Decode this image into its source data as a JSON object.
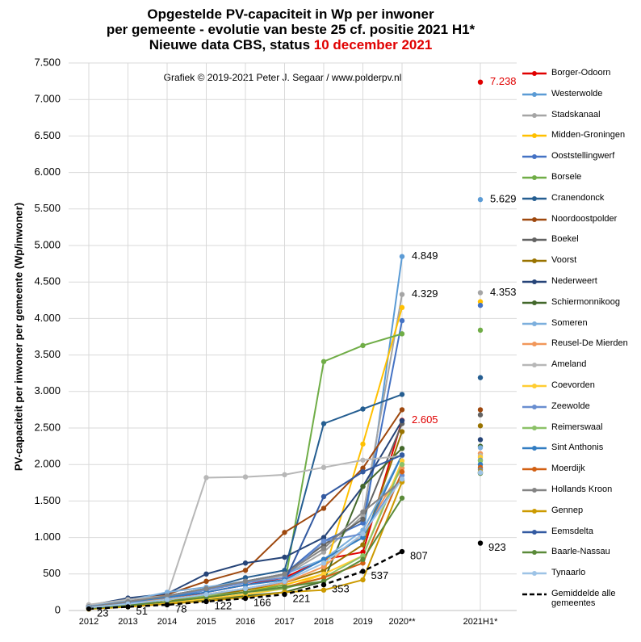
{
  "chart_data": {
    "type": "line",
    "title_lines": [
      "Opgestelde PV-capaciteit in Wp per inwoner",
      "per gemeente - evolutie van beste 25 cf. positie 2021 H1*",
      "Nieuwe data CBS, status"
    ],
    "title_highlight": "10 december 2021",
    "credit": "Grafiek © 2019-2021 Peter J. Segaar / www.polderpv.nl",
    "ylabel": "PV-capaciteit per inwoner per gemeente (Wp/inwoner)",
    "categories": [
      "2012",
      "2013",
      "2014",
      "2015",
      "2016",
      "2017",
      "2018",
      "2019",
      "2020**",
      null,
      "2021H1*"
    ],
    "ylim": [
      0,
      7500
    ],
    "yticks": [
      0,
      500,
      {
        "value": 1000,
        "label": "1.000"
      },
      {
        "value": 1500,
        "label": "1.500"
      },
      {
        "value": 2000,
        "label": "2.000"
      },
      {
        "value": 2500,
        "label": "2.500"
      },
      {
        "value": 3000,
        "label": "3.000"
      },
      {
        "value": 3500,
        "label": "3.500"
      },
      {
        "value": 4000,
        "label": "4.000"
      },
      {
        "value": 4500,
        "label": "4.500"
      },
      {
        "value": 5000,
        "label": "5.000"
      },
      {
        "value": 5500,
        "label": "5.500"
      },
      {
        "value": 6000,
        "label": "6.000"
      },
      {
        "value": 6500,
        "label": "6.500"
      },
      {
        "value": 7000,
        "label": "7.000"
      },
      {
        "value": 7500,
        "label": "7.500"
      }
    ],
    "grid": true,
    "series": [
      {
        "name": "Borger-Odoorn",
        "color": "#e00000",
        "label_color": "#e00000",
        "values": [
          40,
          100,
          150,
          250,
          350,
          450,
          700,
          800,
          2605,
          null,
          7238
        ],
        "value_labels": [
          null,
          null,
          null,
          null,
          null,
          null,
          null,
          null,
          "2.605",
          null,
          "7.238"
        ]
      },
      {
        "name": "Westerwolde",
        "color": "#5b9bd5",
        "label_color": "#000000",
        "values": [
          50,
          120,
          200,
          300,
          400,
          500,
          700,
          1000,
          4849,
          null,
          5629
        ],
        "value_labels": [
          null,
          null,
          null,
          null,
          null,
          null,
          null,
          null,
          "4.849",
          null,
          "5.629"
        ]
      },
      {
        "name": "Stadskanaal",
        "color": "#a5a5a5",
        "label_color": "#000000",
        "values": [
          40,
          100,
          180,
          280,
          380,
          480,
          800,
          1300,
          4329,
          null,
          4353
        ],
        "value_labels": [
          null,
          null,
          null,
          null,
          null,
          null,
          null,
          null,
          "4.329",
          null,
          "4.353"
        ]
      },
      {
        "name": "Midden-Groningen",
        "color": "#ffc000",
        "values": [
          30,
          80,
          120,
          200,
          280,
          350,
          500,
          2280,
          4150,
          null,
          4230
        ]
      },
      {
        "name": "Ooststellingwerf",
        "color": "#4472c4",
        "values": [
          40,
          100,
          180,
          280,
          400,
          500,
          950,
          1200,
          3970,
          null,
          4180
        ]
      },
      {
        "name": "Borsele",
        "color": "#70ad47",
        "values": [
          50,
          100,
          150,
          200,
          250,
          350,
          3410,
          3630,
          3790,
          null,
          3840
        ]
      },
      {
        "name": "Cranendonck",
        "color": "#255e91",
        "values": [
          60,
          120,
          200,
          300,
          450,
          550,
          2560,
          2760,
          2960,
          null,
          3190
        ]
      },
      {
        "name": "Noordoostpolder",
        "color": "#9e480e",
        "values": [
          60,
          130,
          220,
          400,
          550,
          1070,
          1400,
          1950,
          2750,
          null,
          2750
        ]
      },
      {
        "name": "Boekel",
        "color": "#636363",
        "values": [
          50,
          110,
          200,
          300,
          400,
          500,
          900,
          1250,
          2560,
          null,
          2680
        ]
      },
      {
        "name": "Voorst",
        "color": "#997300",
        "values": [
          30,
          70,
          120,
          200,
          280,
          380,
          550,
          900,
          2450,
          null,
          2530
        ]
      },
      {
        "name": "Nederweert",
        "color": "#264478",
        "values": [
          70,
          170,
          230,
          500,
          650,
          730,
          1000,
          1700,
          2600,
          null,
          2340
        ]
      },
      {
        "name": "Schiermonnikoog",
        "color": "#43682b",
        "values": [
          30,
          60,
          100,
          150,
          200,
          250,
          400,
          1700,
          2220,
          null,
          2250
        ]
      },
      {
        "name": "Someren",
        "color": "#7cafdd",
        "values": [
          60,
          140,
          250,
          320,
          400,
          500,
          700,
          1100,
          2130,
          null,
          2230
        ]
      },
      {
        "name": "Reusel-De Mierden",
        "color": "#f1975a",
        "values": [
          40,
          100,
          160,
          220,
          300,
          380,
          600,
          1050,
          1950,
          null,
          2150
        ]
      },
      {
        "name": "Ameland",
        "color": "#b7b7b7",
        "values": [
          80,
          150,
          200,
          1820,
          1830,
          1860,
          1960,
          2060,
          2120,
          null,
          2120
        ]
      },
      {
        "name": "Coevorden",
        "color": "#ffcd33",
        "values": [
          30,
          70,
          110,
          160,
          220,
          300,
          500,
          750,
          2050,
          null,
          2100
        ]
      },
      {
        "name": "Zeewolde",
        "color": "#698ed0",
        "values": [
          40,
          100,
          200,
          280,
          380,
          450,
          950,
          1050,
          1850,
          null,
          2060
        ]
      },
      {
        "name": "Reimerswaal",
        "color": "#8cc168",
        "values": [
          30,
          80,
          150,
          200,
          250,
          300,
          450,
          750,
          2000,
          null,
          2050
        ]
      },
      {
        "name": "Sint Anthonis",
        "color": "#327dc2",
        "values": [
          50,
          120,
          180,
          250,
          350,
          420,
          700,
          1000,
          2130,
          null,
          2000
        ]
      },
      {
        "name": "Moerdijk",
        "color": "#d26012",
        "values": [
          30,
          70,
          120,
          180,
          250,
          320,
          450,
          650,
          1900,
          null,
          1960
        ]
      },
      {
        "name": "Hollands Kroon",
        "color": "#848484",
        "values": [
          50,
          120,
          200,
          300,
          400,
          500,
          850,
          1350,
          1780,
          null,
          1930
        ]
      },
      {
        "name": "Gennep",
        "color": "#cc9a00",
        "values": [
          20,
          50,
          90,
          130,
          180,
          250,
          280,
          420,
          1760,
          null,
          1900
        ]
      },
      {
        "name": "Eemsdelta",
        "color": "#335aa1",
        "values": [
          40,
          90,
          150,
          220,
          300,
          400,
          1560,
          1900,
          2130,
          null,
          1880
        ]
      },
      {
        "name": "Baarle-Nassau",
        "color": "#5a8a39",
        "values": [
          30,
          70,
          120,
          180,
          250,
          320,
          400,
          700,
          1540,
          null,
          1880
        ]
      },
      {
        "name": "Tynaarlo",
        "color": "#9dc3e6",
        "values": [
          40,
          90,
          150,
          220,
          300,
          400,
          650,
          1050,
          1800,
          null,
          1890
        ]
      },
      {
        "name": "Gemiddelde alle gemeentes",
        "color": "#000000",
        "label_color": "#000000",
        "dash": true,
        "values": [
          23,
          51,
          78,
          122,
          166,
          221,
          353,
          537,
          807,
          null,
          923
        ],
        "value_labels": [
          23,
          51,
          78,
          122,
          166,
          221,
          353,
          537,
          807,
          null,
          923
        ]
      }
    ]
  }
}
